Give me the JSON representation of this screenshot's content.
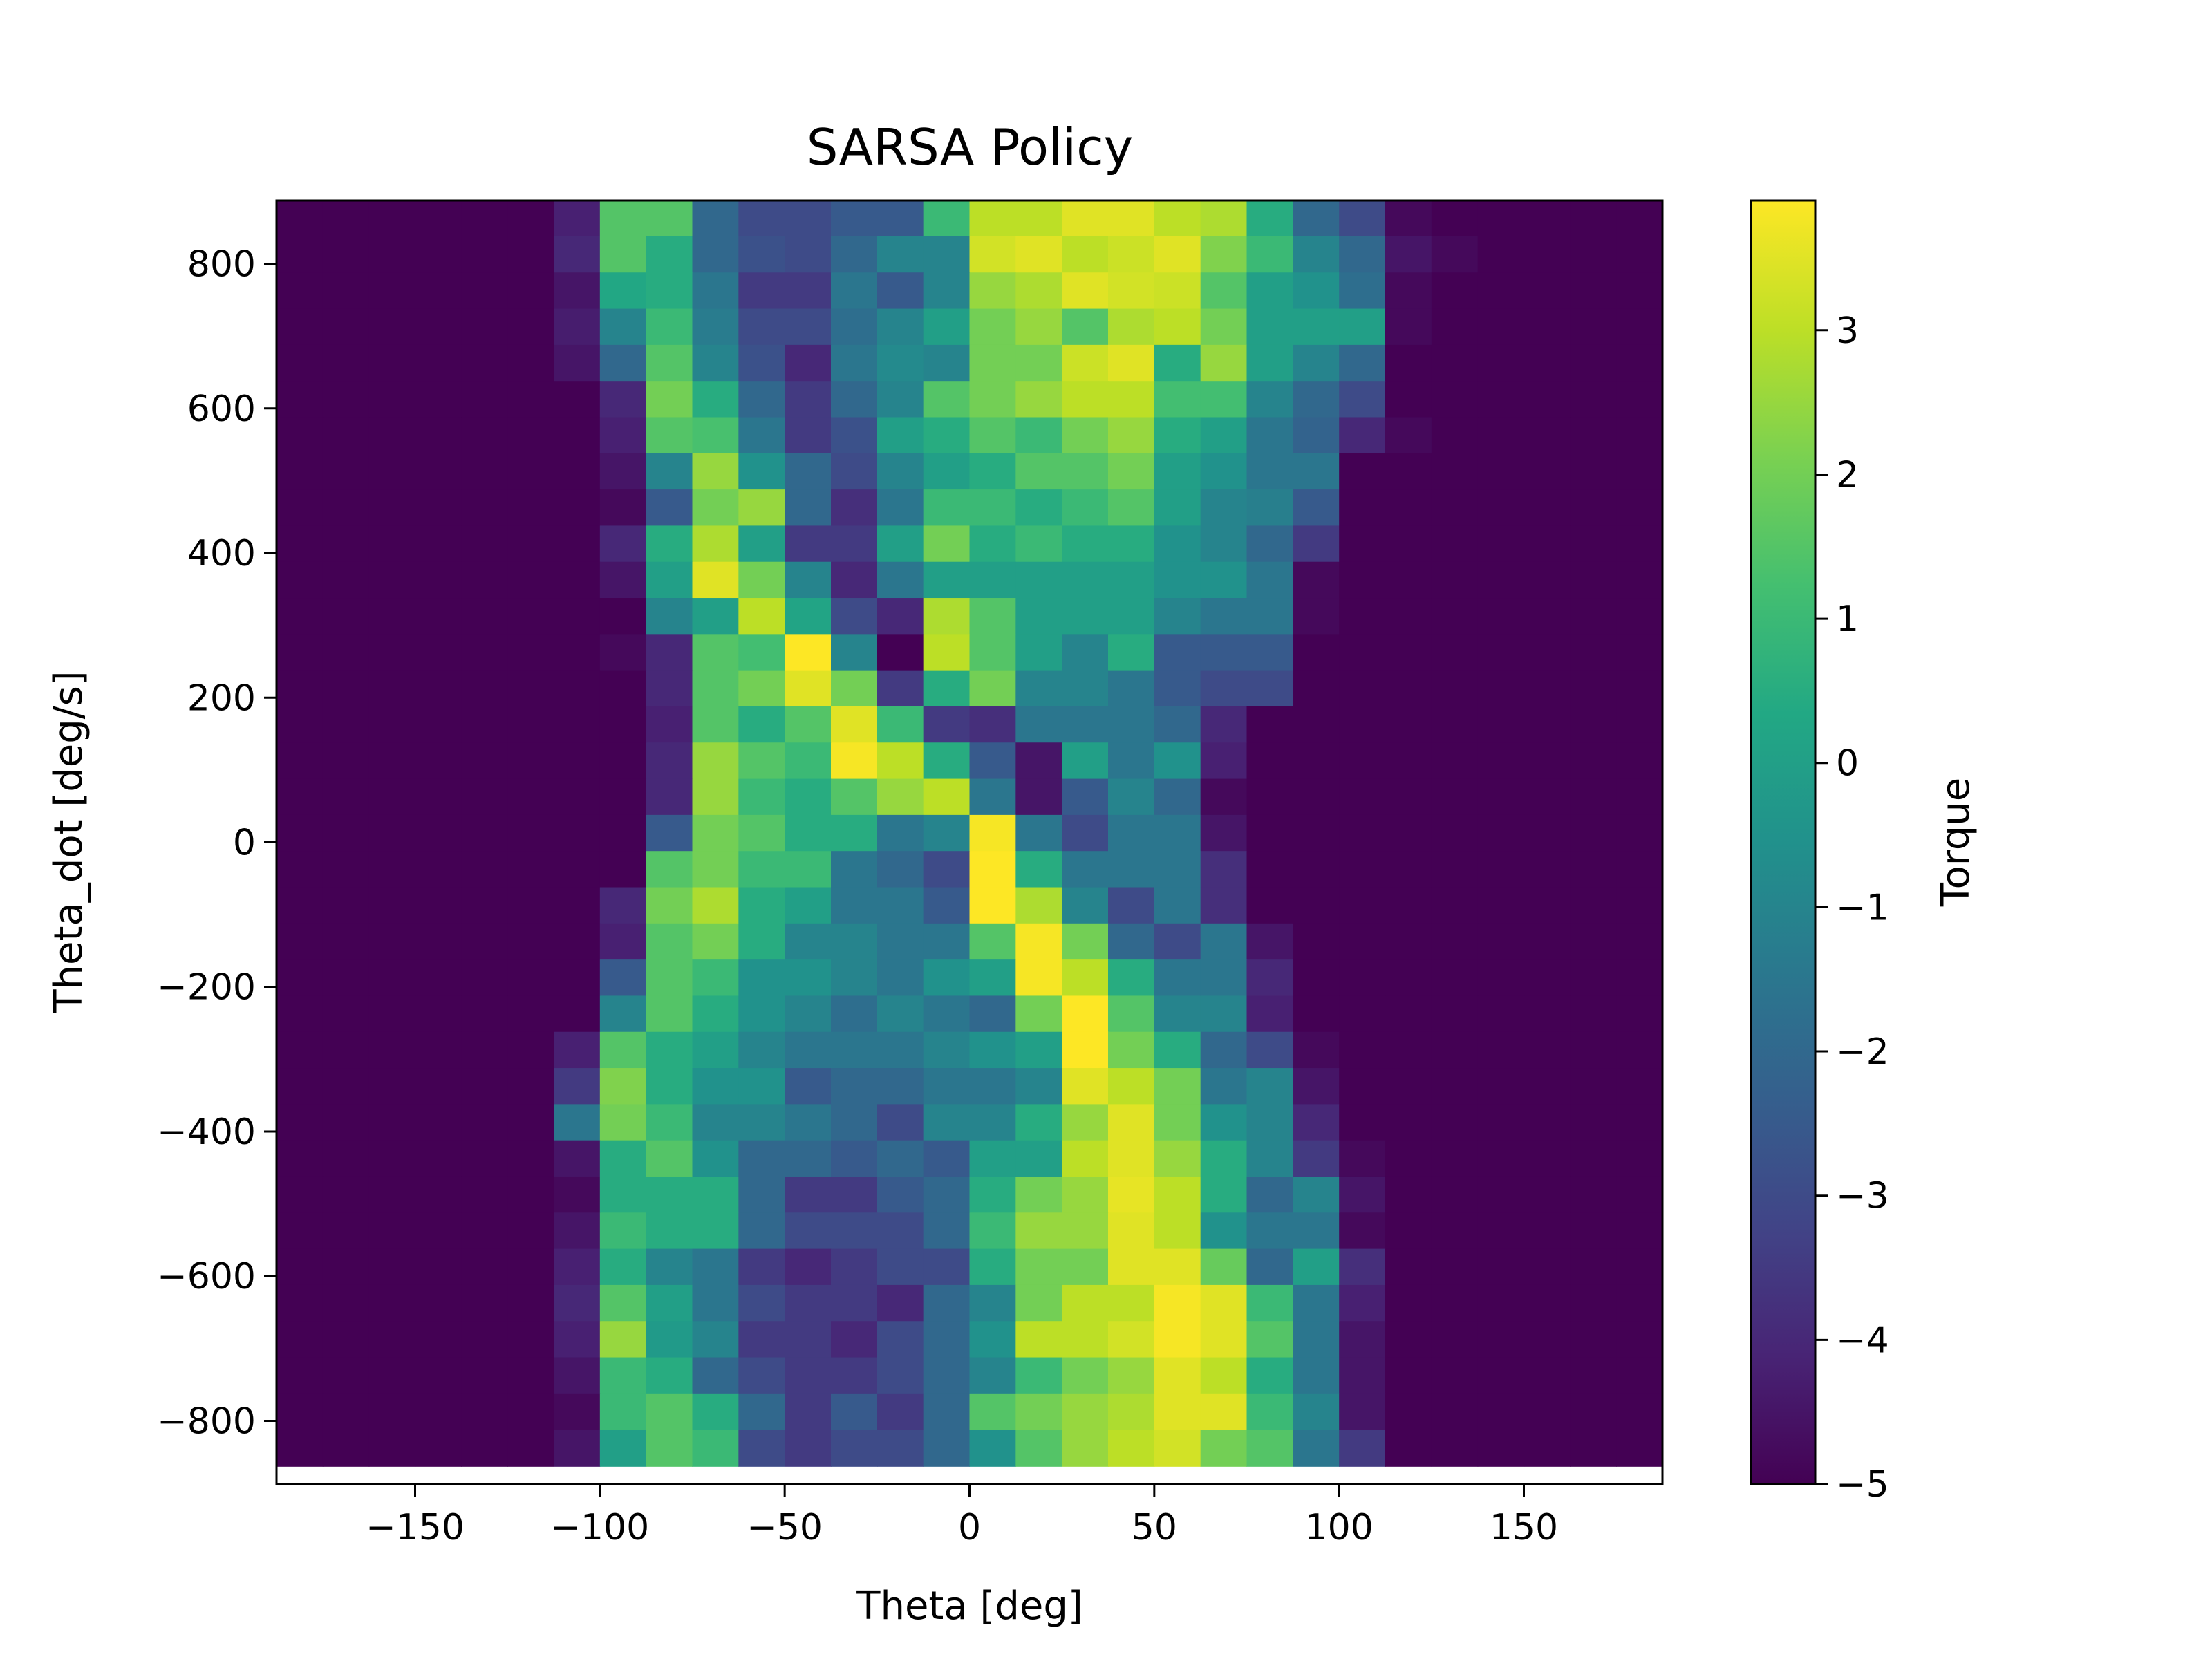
{
  "chart_data": {
    "type": "heatmap",
    "title": "SARSA Policy",
    "xlabel": "Theta [deg]",
    "ylabel": "Theta_dot [deg/s]",
    "colorbar_label": "Torque",
    "colormap": "viridis",
    "x_range": [
      -187.5,
      187.5
    ],
    "y_range": [
      -887.5,
      887.5
    ],
    "x_ticks": [
      -150,
      -100,
      -50,
      0,
      50,
      100,
      150
    ],
    "x_tick_labels": [
      "−150",
      "−100",
      "−50",
      "0",
      "50",
      "100",
      "150"
    ],
    "y_ticks": [
      -800,
      -600,
      -400,
      -200,
      0,
      200,
      400,
      600,
      800
    ],
    "y_tick_labels": [
      "−800",
      "−600",
      "−400",
      "−200",
      "0",
      "200",
      "400",
      "600",
      "800"
    ],
    "color_range": [
      -5,
      3.9
    ],
    "colorbar_ticks": [
      -5,
      -4,
      -3,
      -2,
      -1,
      0,
      1,
      2,
      3
    ],
    "colorbar_tick_labels": [
      "−5",
      "−4",
      "−3",
      "−2",
      "−1",
      "0",
      "1",
      "2",
      "3"
    ],
    "grid": false,
    "x_centers": [
      -181.25,
      -168.75,
      -156.25,
      -143.75,
      -131.25,
      -118.75,
      -106.25,
      -93.75,
      -81.25,
      -68.75,
      -56.25,
      -43.75,
      -31.25,
      -18.75,
      -6.25,
      6.25,
      18.75,
      31.25,
      43.75,
      56.25,
      68.75,
      81.25,
      93.75,
      106.25,
      118.75,
      131.25,
      143.75,
      156.25,
      168.75,
      181.25
    ],
    "y_centers": [
      862.5,
      812.5,
      762.5,
      712.5,
      662.5,
      612.5,
      562.5,
      512.5,
      462.5,
      412.5,
      362.5,
      312.5,
      262.5,
      212.5,
      162.5,
      112.5,
      62.5,
      12.5,
      -37.5,
      -87.5,
      -137.5,
      -187.5,
      -237.5,
      -287.5,
      -337.5,
      -387.5,
      -437.5,
      -487.5,
      -537.5,
      -587.5,
      -637.5,
      -687.5,
      -737.5,
      -787.5,
      -837.5
    ],
    "values": [
      [
        -5,
        -5,
        -5,
        -5,
        -5,
        -5,
        -4.2,
        1.5,
        1.5,
        -2,
        -3,
        -3,
        -2.5,
        -2.5,
        1,
        3,
        3,
        3.5,
        3.5,
        3,
        2.8,
        0.5,
        -2,
        -3,
        -4.8,
        -5,
        -5,
        -5,
        -5,
        -5
      ],
      [
        -5,
        -5,
        -5,
        -5,
        -5,
        -5,
        -4,
        1.5,
        0.5,
        -2,
        -2.8,
        -3,
        -2,
        -1,
        -1,
        3.3,
        3.5,
        3,
        3.2,
        3.5,
        2.2,
        1,
        -1,
        -2,
        -4.5,
        -4.8,
        -5,
        -5,
        -5,
        -5
      ],
      [
        -5,
        -5,
        -5,
        -5,
        -5,
        -5,
        -4.5,
        0.3,
        0.5,
        -1.5,
        -3.5,
        -3.5,
        -1.5,
        -2.5,
        -1,
        2.5,
        2.8,
        3.5,
        3.3,
        3.2,
        1.5,
        0,
        -0.5,
        -1.8,
        -4.8,
        -5,
        -5,
        -5,
        -5,
        -5
      ],
      [
        -5,
        -5,
        -5,
        -5,
        -5,
        -5,
        -4.3,
        -1,
        1,
        -1.3,
        -3,
        -3,
        -1.8,
        -1,
        0,
        2,
        2.5,
        1.5,
        2.8,
        3,
        2,
        0,
        0,
        0,
        -4.8,
        -5,
        -5,
        -5,
        -5,
        -5
      ],
      [
        -5,
        -5,
        -5,
        -5,
        -5,
        -5,
        -4.5,
        -2,
        1.5,
        -1,
        -2.8,
        -4,
        -1.5,
        -0.8,
        -1,
        2,
        2,
        3.2,
        3.5,
        0.5,
        2.5,
        0,
        -1,
        -2,
        -5,
        -5,
        -5,
        -5,
        -5,
        -5
      ],
      [
        -5,
        -5,
        -5,
        -5,
        -5,
        -5,
        -5,
        -4,
        2,
        0.5,
        -2,
        -3.5,
        -2,
        -1,
        1.5,
        2,
        2.5,
        3,
        3,
        1.2,
        1.2,
        -1,
        -2,
        -3,
        -5,
        -5,
        -5,
        -5,
        -5,
        -5
      ],
      [
        -5,
        -5,
        -5,
        -5,
        -5,
        -5,
        -5,
        -4.2,
        1.5,
        1.3,
        -1.5,
        -3.5,
        -2.8,
        0,
        0.5,
        1.5,
        1,
        2,
        2.5,
        0.5,
        0,
        -1.5,
        -2.2,
        -4,
        -4.8,
        -5,
        -5,
        -5,
        -5,
        -5
      ],
      [
        -5,
        -5,
        -5,
        -5,
        -5,
        -5,
        -5,
        -4.5,
        -1,
        2.5,
        -0.5,
        -2,
        -3,
        -1,
        0,
        0.5,
        1.5,
        1.5,
        2,
        0,
        -0.5,
        -1.5,
        -1.5,
        -5,
        -5,
        -5,
        -5,
        -5,
        -5,
        -5
      ],
      [
        -5,
        -5,
        -5,
        -5,
        -5,
        -5,
        -5,
        -4.8,
        -2.5,
        2,
        2.5,
        -2,
        -3.8,
        -1.5,
        1,
        1,
        0.5,
        1,
        1.5,
        0,
        -1,
        -1.2,
        -2.5,
        -5,
        -5,
        -5,
        -5,
        -5,
        -5,
        -5
      ],
      [
        -5,
        -5,
        -5,
        -5,
        -5,
        -5,
        -5,
        -4,
        0.5,
        2.8,
        0,
        -3.5,
        -3.5,
        0,
        2,
        0.5,
        1,
        0.5,
        0.5,
        -0.5,
        -1,
        -2,
        -3.5,
        -5,
        -5,
        -5,
        -5,
        -5,
        -5,
        -5
      ],
      [
        -5,
        -5,
        -5,
        -5,
        -5,
        -5,
        -5,
        -4.5,
        0,
        3.5,
        2,
        -1,
        -4,
        -1.5,
        0,
        0,
        0,
        0,
        0,
        -0.5,
        -0.5,
        -1.5,
        -4.8,
        -5,
        -5,
        -5,
        -5,
        -5,
        -5,
        -5
      ],
      [
        -5,
        -5,
        -5,
        -5,
        -5,
        -5,
        -5,
        -5,
        -1,
        0,
        3,
        0.2,
        -3,
        -4,
        2.8,
        1.5,
        0,
        0,
        0,
        -1,
        -1.5,
        -1.5,
        -4.8,
        -5,
        -5,
        -5,
        -5,
        -5,
        -5,
        -5
      ],
      [
        -5,
        -5,
        -5,
        -5,
        -5,
        -5,
        -5,
        -4.8,
        -4,
        1.5,
        1.2,
        3.9,
        -1,
        -5,
        3,
        1.5,
        0,
        -1,
        0.5,
        -2.5,
        -2.5,
        -2.5,
        -5,
        -5,
        -5,
        -5,
        -5,
        -5,
        -5,
        -5
      ],
      [
        -5,
        -5,
        -5,
        -5,
        -5,
        -5,
        -5,
        -5,
        -4,
        1.5,
        2,
        3.5,
        2,
        -3.5,
        0.5,
        2,
        -1,
        -1,
        -1.5,
        -2.5,
        -3,
        -3,
        -5,
        -5,
        -5,
        -5,
        -5,
        -5,
        -5,
        -5
      ],
      [
        -5,
        -5,
        -5,
        -5,
        -5,
        -5,
        -5,
        -5,
        -4.2,
        1.5,
        0.5,
        1.5,
        3.5,
        1,
        -3.5,
        -3.8,
        -1.5,
        -1.5,
        -1.5,
        -2,
        -4,
        -5,
        -5,
        -5,
        -5,
        -5,
        -5,
        -5,
        -5,
        -5
      ],
      [
        -5,
        -5,
        -5,
        -5,
        -5,
        -5,
        -5,
        -5,
        -4,
        2.5,
        1.5,
        1,
        3.8,
        3,
        0.5,
        -2.5,
        -4.5,
        0,
        -1.5,
        -0.5,
        -4.2,
        -5,
        -5,
        -5,
        -5,
        -5,
        -5,
        -5,
        -5,
        -5
      ],
      [
        -5,
        -5,
        -5,
        -5,
        -5,
        -5,
        -5,
        -5,
        -4,
        2.5,
        1,
        0.5,
        1.5,
        2.5,
        3,
        -1.5,
        -4.5,
        -2.5,
        -1,
        -2,
        -4.8,
        -5,
        -5,
        -5,
        -5,
        -5,
        -5,
        -5,
        -5,
        -5
      ],
      [
        -5,
        -5,
        -5,
        -5,
        -5,
        -5,
        -5,
        -5,
        -2.5,
        2,
        1.5,
        0.5,
        0.5,
        -1.5,
        -1,
        3.8,
        -1.5,
        -3,
        -1.5,
        -1.5,
        -4.5,
        -5,
        -5,
        -5,
        -5,
        -5,
        -5,
        -5,
        -5,
        -5
      ],
      [
        -5,
        -5,
        -5,
        -5,
        -5,
        -5,
        -5,
        -5,
        1.5,
        2,
        1,
        1,
        -1.5,
        -2,
        -3,
        4,
        0.5,
        -1.5,
        -1.5,
        -1.5,
        -3.8,
        -5,
        -5,
        -5,
        -5,
        -5,
        -5,
        -5,
        -5,
        -5
      ],
      [
        -5,
        -5,
        -5,
        -5,
        -5,
        -5,
        -5,
        -4,
        2,
        2.8,
        0.5,
        0,
        -1.5,
        -1.5,
        -2.5,
        3.9,
        2.8,
        -1,
        -3,
        -1.5,
        -3.8,
        -5,
        -5,
        -5,
        -5,
        -5,
        -5,
        -5,
        -5,
        -5
      ],
      [
        -5,
        -5,
        -5,
        -5,
        -5,
        -5,
        -5,
        -4.2,
        1.5,
        2,
        0.5,
        -1,
        -1,
        -1.5,
        -1.5,
        1.5,
        3.8,
        2,
        -2,
        -3,
        -1.5,
        -4.5,
        -5,
        -5,
        -5,
        -5,
        -5,
        -5,
        -5,
        -5
      ],
      [
        -5,
        -5,
        -5,
        -5,
        -5,
        -5,
        -5,
        -2.5,
        1.5,
        1,
        -0.5,
        -0.5,
        -1,
        -1.5,
        -0.5,
        0,
        3.8,
        3,
        0.5,
        -1.5,
        -1.5,
        -4,
        -5,
        -5,
        -5,
        -5,
        -5,
        -5,
        -5,
        -5
      ],
      [
        -5,
        -5,
        -5,
        -5,
        -5,
        -5,
        -5,
        -1,
        1.5,
        0.5,
        -0.5,
        -1,
        -1.8,
        -1,
        -1.5,
        -2,
        2,
        3.9,
        1.5,
        -1,
        -1,
        -4.2,
        -5,
        -5,
        -5,
        -5,
        -5,
        -5,
        -5,
        -5
      ],
      [
        -5,
        -5,
        -5,
        -5,
        -5,
        -5,
        -4.2,
        1.5,
        0.5,
        0,
        -1,
        -1.5,
        -1.5,
        -1.5,
        -1,
        -0.5,
        0,
        3.9,
        2,
        0.5,
        -2,
        -3,
        -4.8,
        -5,
        -5,
        -5,
        -5,
        -5,
        -5,
        -5
      ],
      [
        -5,
        -5,
        -5,
        -5,
        -5,
        -5,
        -3.5,
        2.2,
        0.5,
        -0.5,
        -0.5,
        -2.5,
        -2,
        -2,
        -1.5,
        -1.5,
        -1,
        3.5,
        3,
        2,
        -1.5,
        -1,
        -4.5,
        -5,
        -5,
        -5,
        -5,
        -5,
        -5,
        -5
      ],
      [
        -5,
        -5,
        -5,
        -5,
        -5,
        -5,
        -1.5,
        2,
        1,
        -1,
        -1,
        -1.5,
        -2,
        -3,
        -1,
        -1,
        0.5,
        2.5,
        3.5,
        2,
        -0.5,
        -1,
        -4,
        -5,
        -5,
        -5,
        -5,
        -5,
        -5,
        -5
      ],
      [
        -5,
        -5,
        -5,
        -5,
        -5,
        -5,
        -4.5,
        0.5,
        1.5,
        -0.5,
        -2,
        -2,
        -2.5,
        -2,
        -2.5,
        0,
        0,
        3,
        3.5,
        2.5,
        0.5,
        -1,
        -3.5,
        -4.8,
        -5,
        -5,
        -5,
        -5,
        -5,
        -5
      ],
      [
        -5,
        -5,
        -5,
        -5,
        -5,
        -5,
        -4.8,
        0.5,
        0.5,
        0.5,
        -2,
        -3.5,
        -3.5,
        -2.5,
        -2,
        0.5,
        2,
        2.5,
        3.6,
        3,
        0.5,
        -2,
        -1,
        -4.5,
        -5,
        -5,
        -5,
        -5,
        -5,
        -5
      ],
      [
        -5,
        -5,
        -5,
        -5,
        -5,
        -5,
        -4.5,
        1,
        0.5,
        0.5,
        -2,
        -3,
        -3,
        -3,
        -2,
        1,
        2.5,
        2.5,
        3.5,
        3,
        -0.5,
        -1.5,
        -1.5,
        -4.8,
        -5,
        -5,
        -5,
        -5,
        -5,
        -5
      ],
      [
        -5,
        -5,
        -5,
        -5,
        -5,
        -5,
        -4.2,
        0.5,
        -1,
        -1.5,
        -3.5,
        -4,
        -3.5,
        -3,
        -3,
        0.5,
        2,
        2,
        3.5,
        3.5,
        1.8,
        -2,
        0,
        -3.8,
        -5,
        -5,
        -5,
        -5,
        -5,
        -5
      ],
      [
        -5,
        -5,
        -5,
        -5,
        -5,
        -5,
        -4,
        1.5,
        0,
        -1.5,
        -3,
        -3.5,
        -3.5,
        -4,
        -2,
        -1,
        2,
        3,
        3,
        3.8,
        3.5,
        1,
        -1.5,
        -4.2,
        -5,
        -5,
        -5,
        -5,
        -5,
        -5
      ],
      [
        -5,
        -5,
        -5,
        -5,
        -5,
        -5,
        -4.2,
        2.5,
        -0.2,
        -1,
        -3.5,
        -3.5,
        -4,
        -3,
        -2,
        -0.5,
        3,
        3,
        3.3,
        3.8,
        3.5,
        1.5,
        -1.5,
        -4.5,
        -5,
        -5,
        -5,
        -5,
        -5,
        -5
      ],
      [
        -5,
        -5,
        -5,
        -5,
        -5,
        -5,
        -4.5,
        1,
        0.5,
        -2,
        -3,
        -3.5,
        -3.5,
        -3,
        -2,
        -1,
        1,
        2,
        2.5,
        3.5,
        3,
        0.5,
        -1.5,
        -4.5,
        -5,
        -5,
        -5,
        -5,
        -5,
        -5
      ],
      [
        -5,
        -5,
        -5,
        -5,
        -5,
        -5,
        -4.8,
        1,
        1.5,
        0.5,
        -2,
        -3.5,
        -2.5,
        -3.5,
        -2,
        1.5,
        2,
        2.5,
        2.8,
        3.5,
        3.5,
        1,
        -1,
        -4.5,
        -5,
        -5,
        -5,
        -5,
        -5,
        -5
      ],
      [
        -5,
        -5,
        -5,
        -5,
        -5,
        -5,
        -4.5,
        0,
        1.5,
        1,
        -3,
        -3.5,
        -3,
        -3,
        -2,
        -0.5,
        1.5,
        2.5,
        3,
        3.3,
        2,
        1.5,
        -1.5,
        -3.5,
        -5,
        -5,
        -5,
        -5,
        -5,
        -5
      ]
    ]
  }
}
